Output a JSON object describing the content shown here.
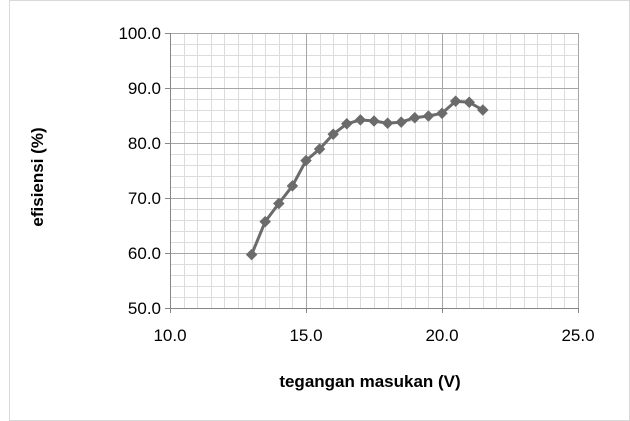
{
  "chart_data": {
    "type": "scatter",
    "title": "",
    "xlabel": "tegangan masukan (V)",
    "ylabel": "efisiensi (%)",
    "xlim": [
      10.0,
      25.0
    ],
    "ylim": [
      50.0,
      100.0
    ],
    "x_major_ticks": [
      "10.0",
      "15.0",
      "20.0",
      "25.0"
    ],
    "y_major_ticks": [
      "50.0",
      "60.0",
      "70.0",
      "80.0",
      "90.0",
      "100.0"
    ],
    "x_minor_step": 0.5,
    "y_minor_step": 2,
    "grid": true,
    "legend": "none",
    "series": [
      {
        "marker": "diamond",
        "line": "straight",
        "color": "#6b6b6b",
        "x": [
          13.0,
          13.5,
          14.0,
          14.5,
          15.0,
          15.5,
          16.0,
          16.5,
          17.0,
          17.5,
          18.0,
          18.5,
          19.0,
          19.5,
          20.0,
          20.5,
          21.0,
          21.5
        ],
        "y": [
          59.7,
          65.7,
          69.0,
          72.2,
          76.8,
          78.9,
          81.6,
          83.5,
          84.2,
          84.0,
          83.6,
          83.8,
          84.6,
          84.9,
          85.4,
          87.6,
          87.4,
          86.0
        ]
      }
    ]
  }
}
